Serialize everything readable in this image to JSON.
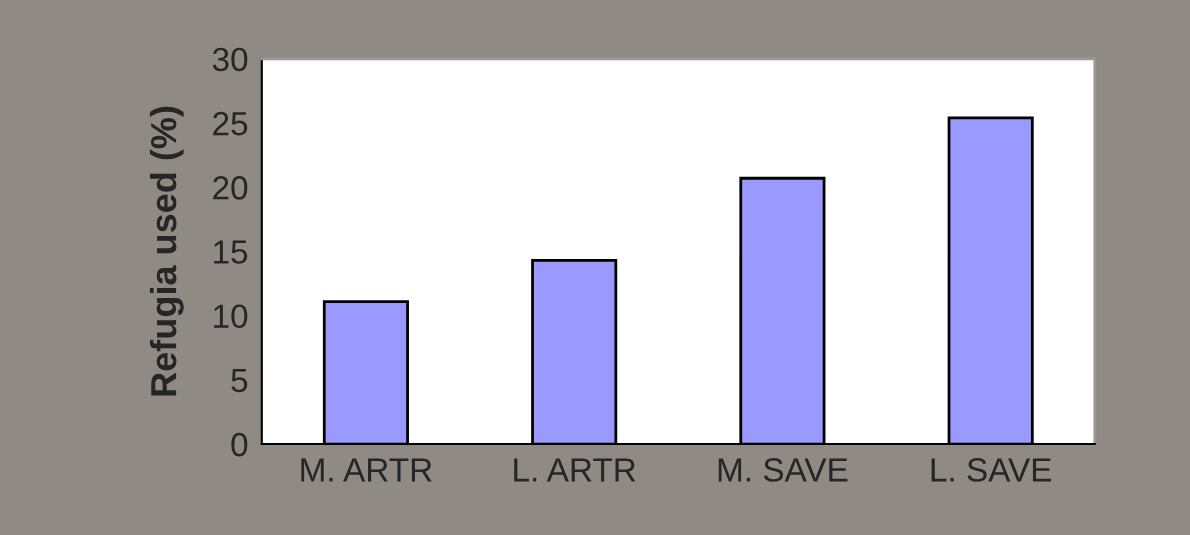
{
  "chart_data": {
    "type": "bar",
    "ylabel": "Refugia used (%)",
    "categories": [
      "M. ARTR",
      "L. ARTR",
      "M. SAVE",
      "L. SAVE"
    ],
    "values": [
      11.1,
      14.3,
      20.7,
      25.4
    ],
    "color": "#9999ff",
    "ylim": [
      0,
      30
    ],
    "yticks": [
      0,
      5,
      10,
      15,
      20,
      25,
      30
    ],
    "grid": false,
    "legend": false
  }
}
